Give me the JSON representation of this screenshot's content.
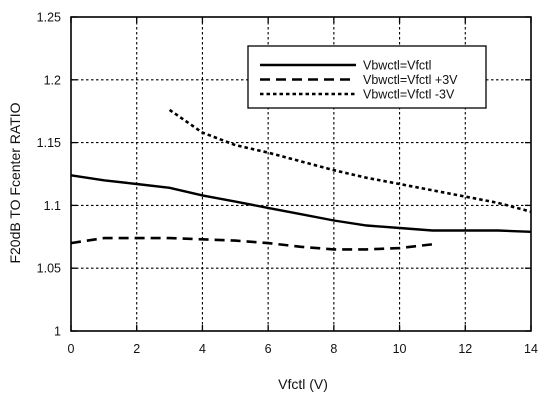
{
  "chart_data": {
    "type": "line",
    "xlabel": "Vfctl (V)",
    "ylabel": "F20dB TO Fcenter RATIO",
    "xlim": [
      0,
      14
    ],
    "ylim": [
      1,
      1.25
    ],
    "x_ticks": [
      0,
      2,
      4,
      6,
      8,
      10,
      12,
      14
    ],
    "y_ticks": [
      1,
      1.05,
      1.1,
      1.15,
      1.2,
      1.25
    ],
    "x_tick_labels": [
      "0",
      "2",
      "4",
      "6",
      "8",
      "10",
      "12",
      "14"
    ],
    "y_tick_labels": [
      "1",
      "1.05",
      "1.1",
      "1.15",
      "1.2",
      "1.25"
    ],
    "grid": true,
    "grid_style": "dotted",
    "legend_position": "top-right",
    "series": [
      {
        "name": "Vbwctl=Vfctl",
        "line_style": "solid",
        "color": "#000000",
        "x": [
          0,
          1,
          2,
          3,
          4,
          5,
          6,
          7,
          8,
          9,
          10,
          11,
          12,
          13,
          14
        ],
        "y": [
          1.124,
          1.12,
          1.117,
          1.114,
          1.108,
          1.103,
          1.098,
          1.093,
          1.088,
          1.084,
          1.082,
          1.08,
          1.08,
          1.08,
          1.079
        ]
      },
      {
        "name": "Vbwctl=Vfctl +3V",
        "line_style": "dashed",
        "color": "#000000",
        "x": [
          0,
          1,
          2,
          3,
          4,
          5,
          6,
          7,
          8,
          9,
          10,
          11
        ],
        "y": [
          1.07,
          1.074,
          1.074,
          1.074,
          1.073,
          1.072,
          1.07,
          1.067,
          1.065,
          1.065,
          1.066,
          1.069
        ]
      },
      {
        "name": "Vbwctl=Vfctl -3V",
        "line_style": "dotted",
        "color": "#000000",
        "x": [
          3,
          4,
          5,
          6,
          7,
          8,
          9,
          10,
          11,
          12,
          13,
          14
        ],
        "y": [
          1.176,
          1.158,
          1.148,
          1.142,
          1.135,
          1.128,
          1.122,
          1.117,
          1.112,
          1.107,
          1.102,
          1.095
        ]
      }
    ]
  }
}
